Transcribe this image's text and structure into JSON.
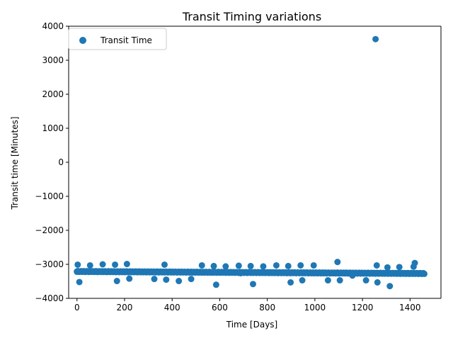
{
  "chart_data": {
    "type": "scatter",
    "title": "Transit Timing variations",
    "xlabel": "Time [Days]",
    "ylabel": "Transit time [Minutes]",
    "xlim": [
      -35,
      1530
    ],
    "ylim": [
      -4000,
      4000
    ],
    "x_ticks": [
      0,
      200,
      400,
      600,
      800,
      1000,
      1200,
      1400
    ],
    "y_ticks": [
      -4000,
      -3000,
      -2000,
      -1000,
      0,
      1000,
      2000,
      3000,
      4000
    ],
    "grid": false,
    "legend_position": "upper-left",
    "series_color": "#1f77b4",
    "series": [
      {
        "name": "Transit Time",
        "baseline": {
          "x_start": 0,
          "x_end": 1460,
          "y_start": -3210,
          "y_end": -3270
        },
        "points": [
          {
            "x": 0,
            "y": -3220
          },
          {
            "x": 3,
            "y": -3010
          },
          {
            "x": 10,
            "y": -3520
          },
          {
            "x": 55,
            "y": -3030
          },
          {
            "x": 108,
            "y": -3000
          },
          {
            "x": 160,
            "y": -3010
          },
          {
            "x": 168,
            "y": -3490
          },
          {
            "x": 210,
            "y": -2990
          },
          {
            "x": 220,
            "y": -3420
          },
          {
            "x": 325,
            "y": -3430
          },
          {
            "x": 368,
            "y": -3010
          },
          {
            "x": 375,
            "y": -3450
          },
          {
            "x": 428,
            "y": -3490
          },
          {
            "x": 480,
            "y": -3430
          },
          {
            "x": 525,
            "y": -3030
          },
          {
            "x": 575,
            "y": -3050
          },
          {
            "x": 585,
            "y": -3600
          },
          {
            "x": 625,
            "y": -3060
          },
          {
            "x": 680,
            "y": -3040
          },
          {
            "x": 688,
            "y": -3260
          },
          {
            "x": 730,
            "y": -3050
          },
          {
            "x": 740,
            "y": -3580
          },
          {
            "x": 783,
            "y": -3060
          },
          {
            "x": 838,
            "y": -3030
          },
          {
            "x": 888,
            "y": -3050
          },
          {
            "x": 898,
            "y": -3530
          },
          {
            "x": 940,
            "y": -3030
          },
          {
            "x": 947,
            "y": -3470
          },
          {
            "x": 995,
            "y": -3030
          },
          {
            "x": 1055,
            "y": -3470
          },
          {
            "x": 1095,
            "y": -2930
          },
          {
            "x": 1105,
            "y": -3470
          },
          {
            "x": 1158,
            "y": -3330
          },
          {
            "x": 1215,
            "y": -3470
          },
          {
            "x": 1255,
            "y": 3620
          },
          {
            "x": 1260,
            "y": -3030
          },
          {
            "x": 1263,
            "y": -3530
          },
          {
            "x": 1305,
            "y": -3090
          },
          {
            "x": 1315,
            "y": -3640
          },
          {
            "x": 1355,
            "y": -3080
          },
          {
            "x": 1415,
            "y": -3070
          },
          {
            "x": 1420,
            "y": -2960
          }
        ]
      }
    ]
  }
}
